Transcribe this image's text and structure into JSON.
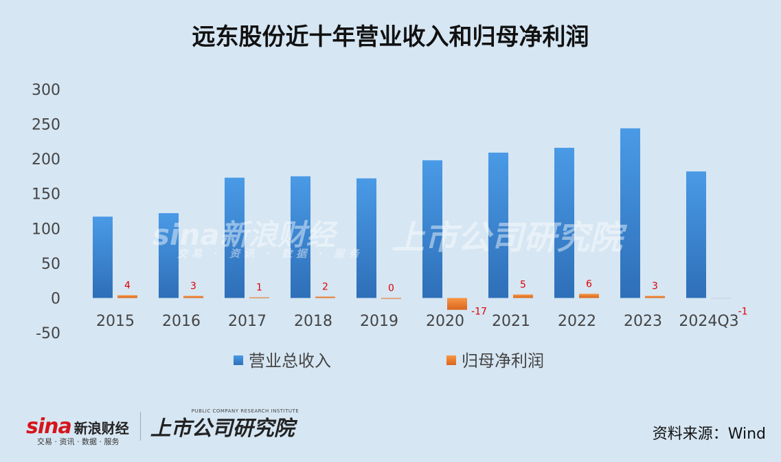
{
  "title": "远东股份近十年营业收入和归母净利润",
  "source": "资料来源：Wind",
  "watermarks": {
    "sina": "sina新浪财经",
    "sina_sub": "交易 · 资讯 · 数据 · 服务",
    "institute": "上市公司研究院",
    "institute_en": "PUBLIC COMPANY RESEARCH INSTITUTE"
  },
  "colors": {
    "background": "#d6e6f3",
    "revenue": "#3a86d4",
    "net_profit": "#ed7d31",
    "data_label": "#e00000",
    "sina_red": "#d7141b"
  },
  "chart_data": {
    "type": "bar",
    "title": "远东股份近十年营业收入和归母净利润",
    "categories": [
      "2015",
      "2016",
      "2017",
      "2018",
      "2019",
      "2020",
      "2021",
      "2022",
      "2023",
      "2024Q3"
    ],
    "series": [
      {
        "name": "营业总收入",
        "values": [
          117,
          122,
          173,
          175,
          172,
          198,
          209,
          216,
          244,
          182
        ],
        "show_labels": false
      },
      {
        "name": "归母净利润",
        "values": [
          4,
          3,
          1,
          2,
          0,
          -17,
          5,
          6,
          3,
          -1
        ],
        "labels": [
          "4",
          "3",
          "1",
          "2",
          "0",
          "-17",
          "5",
          "6",
          "3",
          "-1"
        ],
        "show_labels": true
      }
    ],
    "ylim": [
      -50,
      300
    ],
    "yticks": [
      -50,
      0,
      50,
      100,
      150,
      200,
      250,
      300
    ],
    "xlabel": "",
    "ylabel": "",
    "grid": false,
    "legend_position": "bottom"
  }
}
